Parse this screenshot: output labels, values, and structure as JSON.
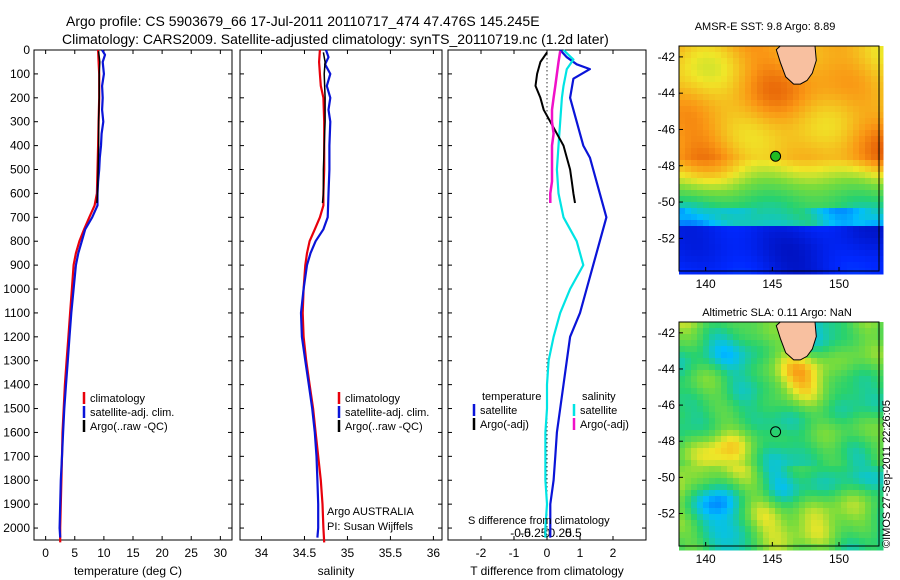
{
  "header": {
    "line1": "Argo profile: CS 5903679_66 17-Jul-2011 20110717_474 47.476S 145.245E",
    "line2": "Climatology: CARS2009. Satellite-adjusted climatology: synTS_20110719.nc (1.2d later)"
  },
  "footer": {
    "credit": "©IMOS 27-Sep-2011 22:26:05",
    "owner": "Argo AUSTRALIA",
    "pi": "PI: Susan Wijffels"
  },
  "colors": {
    "climatology": "#e8000b",
    "satellite": "#0a14d8",
    "argo": "#000000",
    "sal_satellite": "#00e4e4",
    "sal_argo": "#f010c8",
    "land": "#f8c0a0"
  },
  "chart_data": [
    {
      "id": "temperature",
      "type": "line",
      "xlabel": "temperature (deg C)",
      "ylabel": "",
      "xlim": [
        -2,
        32
      ],
      "ylim": [
        2050,
        0
      ],
      "xticks": [
        0,
        5,
        10,
        15,
        20,
        25,
        30
      ],
      "yticks": [
        0,
        100,
        200,
        300,
        400,
        500,
        600,
        700,
        800,
        900,
        1000,
        1100,
        1200,
        1300,
        1400,
        1500,
        1600,
        1700,
        1800,
        1900,
        2000
      ],
      "legend": {
        "placement": "center-right",
        "entries": [
          "climatology",
          "satellite-adj. clim.",
          "Argo(..raw -QC)"
        ]
      },
      "series": [
        {
          "name": "climatology",
          "color": "#e8000b",
          "width": 2.2,
          "points": [
            [
              9.0,
              0
            ],
            [
              9.1,
              50
            ],
            [
              9.2,
              100
            ],
            [
              9.2,
              200
            ],
            [
              9.1,
              300
            ],
            [
              9.0,
              400
            ],
            [
              8.9,
              500
            ],
            [
              8.8,
              600
            ],
            [
              8.4,
              650
            ],
            [
              7.5,
              700
            ],
            [
              6.6,
              750
            ],
            [
              5.8,
              800
            ],
            [
              5.2,
              850
            ],
            [
              4.8,
              900
            ],
            [
              4.5,
              1000
            ],
            [
              4.2,
              1100
            ],
            [
              3.9,
              1200
            ],
            [
              3.6,
              1300
            ],
            [
              3.3,
              1400
            ],
            [
              3.1,
              1500
            ],
            [
              2.9,
              1600
            ],
            [
              2.8,
              1700
            ],
            [
              2.7,
              1800
            ],
            [
              2.6,
              1900
            ],
            [
              2.5,
              2000
            ],
            [
              2.5,
              2060
            ]
          ]
        },
        {
          "name": "satellite-adj. clim.",
          "color": "#0a14d8",
          "width": 2.2,
          "points": [
            [
              9.7,
              0
            ],
            [
              10.2,
              20
            ],
            [
              9.8,
              50
            ],
            [
              10.0,
              100
            ],
            [
              9.7,
              150
            ],
            [
              9.8,
              200
            ],
            [
              9.7,
              250
            ],
            [
              9.9,
              300
            ],
            [
              9.6,
              350
            ],
            [
              9.5,
              400
            ],
            [
              9.3,
              450
            ],
            [
              9.2,
              500
            ],
            [
              9.0,
              550
            ],
            [
              8.9,
              600
            ],
            [
              8.9,
              650
            ],
            [
              8.0,
              700
            ],
            [
              6.8,
              750
            ],
            [
              6.2,
              800
            ],
            [
              5.6,
              850
            ],
            [
              5.2,
              900
            ],
            [
              4.8,
              1000
            ],
            [
              4.4,
              1100
            ],
            [
              4.1,
              1200
            ],
            [
              3.8,
              1300
            ],
            [
              3.5,
              1400
            ],
            [
              3.2,
              1500
            ],
            [
              3.0,
              1600
            ],
            [
              2.8,
              1700
            ],
            [
              2.6,
              1800
            ],
            [
              2.5,
              1900
            ],
            [
              2.4,
              2000
            ],
            [
              2.5,
              2040
            ]
          ]
        },
        {
          "name": "Argo(..raw -QC)",
          "color": "#000000",
          "width": 1.5,
          "points": [
            [
              9.1,
              5
            ],
            [
              9.3,
              50
            ],
            [
              9.2,
              100
            ],
            [
              9.2,
              200
            ],
            [
              9.1,
              300
            ],
            [
              9.1,
              400
            ],
            [
              9.0,
              500
            ],
            [
              8.9,
              600
            ],
            [
              8.8,
              640
            ]
          ]
        }
      ]
    },
    {
      "id": "salinity",
      "type": "line",
      "xlabel": "salinity",
      "ylabel": "",
      "xlim": [
        33.75,
        36.1
      ],
      "ylim": [
        2050,
        0
      ],
      "xticks": [
        34,
        34.5,
        35,
        35.5,
        36
      ],
      "legend": {
        "placement": "center-right",
        "entries": [
          "climatology",
          "satellite-adj. clim.",
          "Argo(..raw -QC)"
        ]
      },
      "series": [
        {
          "name": "climatology",
          "color": "#e8000b",
          "width": 2.2,
          "points": [
            [
              34.68,
              0
            ],
            [
              34.67,
              50
            ],
            [
              34.68,
              100
            ],
            [
              34.69,
              150
            ],
            [
              34.72,
              200
            ],
            [
              34.73,
              300
            ],
            [
              34.73,
              400
            ],
            [
              34.73,
              500
            ],
            [
              34.72,
              600
            ],
            [
              34.72,
              650
            ],
            [
              34.68,
              700
            ],
            [
              34.62,
              750
            ],
            [
              34.56,
              800
            ],
            [
              34.53,
              850
            ],
            [
              34.51,
              900
            ],
            [
              34.49,
              1000
            ],
            [
              34.48,
              1100
            ],
            [
              34.49,
              1200
            ],
            [
              34.52,
              1300
            ],
            [
              34.56,
              1400
            ],
            [
              34.6,
              1500
            ],
            [
              34.63,
              1600
            ],
            [
              34.66,
              1700
            ],
            [
              34.69,
              1800
            ],
            [
              34.71,
              1900
            ],
            [
              34.72,
              2000
            ],
            [
              34.73,
              2060
            ]
          ]
        },
        {
          "name": "satellite-adj. clim.",
          "color": "#0a14d8",
          "width": 2.2,
          "points": [
            [
              34.75,
              0
            ],
            [
              34.78,
              30
            ],
            [
              34.74,
              60
            ],
            [
              34.8,
              100
            ],
            [
              34.76,
              150
            ],
            [
              34.8,
              200
            ],
            [
              34.78,
              250
            ],
            [
              34.8,
              300
            ],
            [
              34.79,
              400
            ],
            [
              34.79,
              500
            ],
            [
              34.78,
              600
            ],
            [
              34.77,
              700
            ],
            [
              34.72,
              750
            ],
            [
              34.63,
              800
            ],
            [
              34.57,
              850
            ],
            [
              34.53,
              900
            ],
            [
              34.49,
              1000
            ],
            [
              34.46,
              1100
            ],
            [
              34.47,
              1200
            ],
            [
              34.51,
              1300
            ],
            [
              34.55,
              1400
            ],
            [
              34.59,
              1500
            ],
            [
              34.62,
              1600
            ],
            [
              34.64,
              1700
            ],
            [
              34.65,
              1800
            ],
            [
              34.66,
              1900
            ],
            [
              34.66,
              2000
            ],
            [
              34.65,
              2040
            ]
          ]
        },
        {
          "name": "Argo(..raw -QC)",
          "color": "#000000",
          "width": 1.5,
          "points": [
            [
              34.72,
              10
            ],
            [
              34.74,
              50
            ],
            [
              34.73,
              100
            ],
            [
              34.74,
              200
            ],
            [
              34.74,
              300
            ],
            [
              34.73,
              400
            ],
            [
              34.72,
              500
            ],
            [
              34.72,
              600
            ],
            [
              34.71,
              640
            ]
          ]
        }
      ]
    },
    {
      "id": "difference",
      "type": "line",
      "xlabel": "T difference from climatology",
      "xlabel_top": "S difference from climatology",
      "ylabel": "",
      "xlim": [
        -3.0,
        3.0
      ],
      "ylim": [
        2050,
        0
      ],
      "xticks": [
        -2,
        -1,
        0,
        1,
        2
      ],
      "sxticks": [
        -0.5,
        -0.25,
        0,
        0.25,
        0.5
      ],
      "legend_temperature": {
        "title": "temperature",
        "entries": [
          "satellite",
          "Argo(-adj)"
        ]
      },
      "legend_salinity": {
        "title": "salinity",
        "entries": [
          "satellite",
          "Argo(-adj)"
        ]
      },
      "series": [
        {
          "name": "T satellite",
          "color": "#0a14d8",
          "width": 2.2,
          "points": [
            [
              0.4,
              0
            ],
            [
              0.6,
              30
            ],
            [
              0.9,
              60
            ],
            [
              1.3,
              80
            ],
            [
              0.8,
              120
            ],
            [
              0.7,
              200
            ],
            [
              0.9,
              300
            ],
            [
              1.0,
              350
            ],
            [
              1.1,
              400
            ],
            [
              1.3,
              450
            ],
            [
              1.4,
              500
            ],
            [
              1.6,
              600
            ],
            [
              1.8,
              700
            ],
            [
              1.6,
              800
            ],
            [
              1.4,
              900
            ],
            [
              1.2,
              1000
            ],
            [
              1.0,
              1100
            ],
            [
              0.7,
              1200
            ],
            [
              0.6,
              1300
            ],
            [
              0.5,
              1400
            ],
            [
              0.4,
              1500
            ],
            [
              0.3,
              1600
            ],
            [
              0.25,
              1700
            ],
            [
              0.2,
              1800
            ],
            [
              0.1,
              1900
            ],
            [
              0.1,
              2000
            ],
            [
              0.1,
              2040
            ]
          ]
        },
        {
          "name": "S satellite",
          "color": "#00e4e4",
          "width": 2.2,
          "points": [
            [
              0.5,
              0
            ],
            [
              0.8,
              40
            ],
            [
              0.6,
              80
            ],
            [
              0.5,
              150
            ],
            [
              0.45,
              200
            ],
            [
              0.4,
              300
            ],
            [
              0.35,
              400
            ],
            [
              0.3,
              500
            ],
            [
              0.35,
              600
            ],
            [
              0.5,
              700
            ],
            [
              0.9,
              800
            ],
            [
              1.1,
              900
            ],
            [
              0.7,
              1000
            ],
            [
              0.4,
              1100
            ],
            [
              0.2,
              1200
            ],
            [
              0.05,
              1300
            ],
            [
              0.0,
              1400
            ],
            [
              0.0,
              1500
            ],
            [
              -0.05,
              1600
            ],
            [
              -0.05,
              1700
            ],
            [
              -0.05,
              1800
            ],
            [
              0.0,
              1900
            ],
            [
              -0.05,
              2000
            ],
            [
              -0.05,
              2040
            ]
          ]
        },
        {
          "name": "T Argo(-adj)",
          "color": "#000000",
          "width": 2.0,
          "points": [
            [
              0.0,
              10
            ],
            [
              -0.2,
              50
            ],
            [
              -0.3,
              100
            ],
            [
              -0.35,
              150
            ],
            [
              -0.2,
              200
            ],
            [
              -0.1,
              250
            ],
            [
              0.1,
              300
            ],
            [
              0.3,
              350
            ],
            [
              0.5,
              400
            ],
            [
              0.6,
              450
            ],
            [
              0.7,
              500
            ],
            [
              0.75,
              550
            ],
            [
              0.8,
              600
            ],
            [
              0.85,
              640
            ]
          ]
        },
        {
          "name": "S Argo(-adj)",
          "color": "#f010c8",
          "width": 2.5,
          "points": [
            [
              0.4,
              5
            ],
            [
              0.35,
              50
            ],
            [
              0.3,
              100
            ],
            [
              0.25,
              150
            ],
            [
              0.2,
              200
            ],
            [
              0.15,
              250
            ],
            [
              0.15,
              300
            ],
            [
              0.2,
              350
            ],
            [
              0.15,
              400
            ],
            [
              0.15,
              450
            ],
            [
              0.15,
              500
            ],
            [
              0.15,
              550
            ],
            [
              0.1,
              600
            ],
            [
              0.1,
              640
            ]
          ]
        }
      ]
    },
    {
      "id": "sst-map",
      "type": "heatmap",
      "title": "AMSR-E SST: 9.8 Argo: 8.89",
      "xlim": [
        138,
        153
      ],
      "ylim": [
        -53.8,
        -41.4
      ],
      "xticks": [
        140,
        145,
        150
      ],
      "yticks": [
        -42,
        -44,
        -46,
        -48,
        -50,
        -52
      ],
      "marker": {
        "lon": 145.245,
        "lat": -47.476,
        "color": "#22bb22"
      }
    },
    {
      "id": "sla-map",
      "type": "heatmap",
      "title": "Altimetric SLA: 0.11 Argo: NaN",
      "xlim": [
        138,
        153
      ],
      "ylim": [
        -53.8,
        -41.4
      ],
      "xticks": [
        140,
        145,
        150
      ],
      "yticks": [
        -42,
        -44,
        -46,
        -48,
        -50,
        -52
      ],
      "marker": {
        "lon": 145.245,
        "lat": -47.476,
        "color": "#22bb22"
      }
    }
  ]
}
